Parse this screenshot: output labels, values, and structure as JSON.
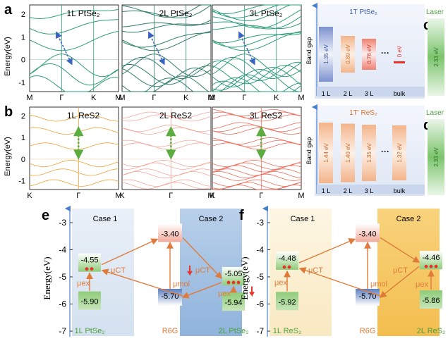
{
  "panels": {
    "a": {
      "letter": "a",
      "ylabel": "Energy(eV)",
      "yticks": [
        "2",
        "1",
        "0",
        "-1"
      ],
      "xticks": [
        "M",
        "Γ",
        "K",
        "M"
      ],
      "titles": [
        "1L PtSe₂",
        "2L PtSe₂",
        "3L PtSe₂"
      ],
      "line_color": "#2e9d7a"
    },
    "b": {
      "letter": "b",
      "ylabel": "Energy(eV)",
      "yticks": [
        "2",
        "1",
        "0",
        "-1"
      ],
      "xticks": [
        "K",
        "Γ",
        "M"
      ],
      "titles": [
        "1L ReS2",
        "2L ReS2",
        "3L ReS2"
      ],
      "line_colors": [
        "#f0a030",
        "#f4b8aa",
        "#ee6c5c"
      ]
    },
    "c": {
      "letter": "c",
      "title": "1T PtSe₂",
      "ylabel": "Band gap",
      "bars": [
        {
          "label": "1 L",
          "value": "1.35 eV"
        },
        {
          "label": "2 L",
          "value": "0.89 eV"
        },
        {
          "label": "3 L",
          "value": "0.76 eV"
        },
        {
          "label": "bulk",
          "value": "0 eV"
        }
      ],
      "ellipsis": "···",
      "laser_label": "Laser",
      "laser_value": "2.33 eV"
    },
    "d": {
      "letter": "d",
      "title": "1T' ReS₂",
      "ylabel": "Band gap",
      "bars": [
        {
          "label": "1 L",
          "value": "1.44 eV"
        },
        {
          "label": "2 L",
          "value": "1.40 eV"
        },
        {
          "label": "3 L",
          "value": "1.35 eV"
        },
        {
          "label": "bulk",
          "value": "1.32 eV"
        }
      ],
      "ellipsis": "···",
      "laser_label": "Laser",
      "laser_value": "2.33 eV"
    },
    "e": {
      "letter": "e",
      "ylabel": "Energy(eV)",
      "yticks": [
        "-3",
        "-4",
        "-5",
        "-6",
        "-7"
      ],
      "case1": "Case 1",
      "case2": "Case 2",
      "levels": {
        "l1_cb": "-4.55",
        "l1_vb": "-5.90",
        "r6g_lumo": "-3.40",
        "r6g_homo": "-5.70",
        "l2_cb": "-5.05",
        "l2_vb": "-5.94"
      },
      "mu": {
        "ex": "μex",
        "ct": "μCT",
        "mol": "μmol"
      },
      "bottom": {
        "left": "1L PtSe₂",
        "mid": "R6G",
        "right": "2L PtSe₂"
      }
    },
    "f": {
      "letter": "f",
      "ylabel": "Energy(eV)",
      "yticks": [
        "-3",
        "-4",
        "-5",
        "-6",
        "-7"
      ],
      "case1": "Case 1",
      "case2": "Case 2",
      "levels": {
        "l1_cb": "-4.48",
        "l1_vb": "-5.92",
        "r6g_lumo": "-3.40",
        "r6g_homo": "-5.70",
        "l2_cb": "-4.46",
        "l2_vb": "-5.86"
      },
      "mu": {
        "ex": "μex",
        "ct": "μCT",
        "mol": "μmol"
      },
      "bottom": {
        "left": "1L ReS₂",
        "mid": "R6G",
        "right": "2L ReS₂"
      }
    }
  }
}
